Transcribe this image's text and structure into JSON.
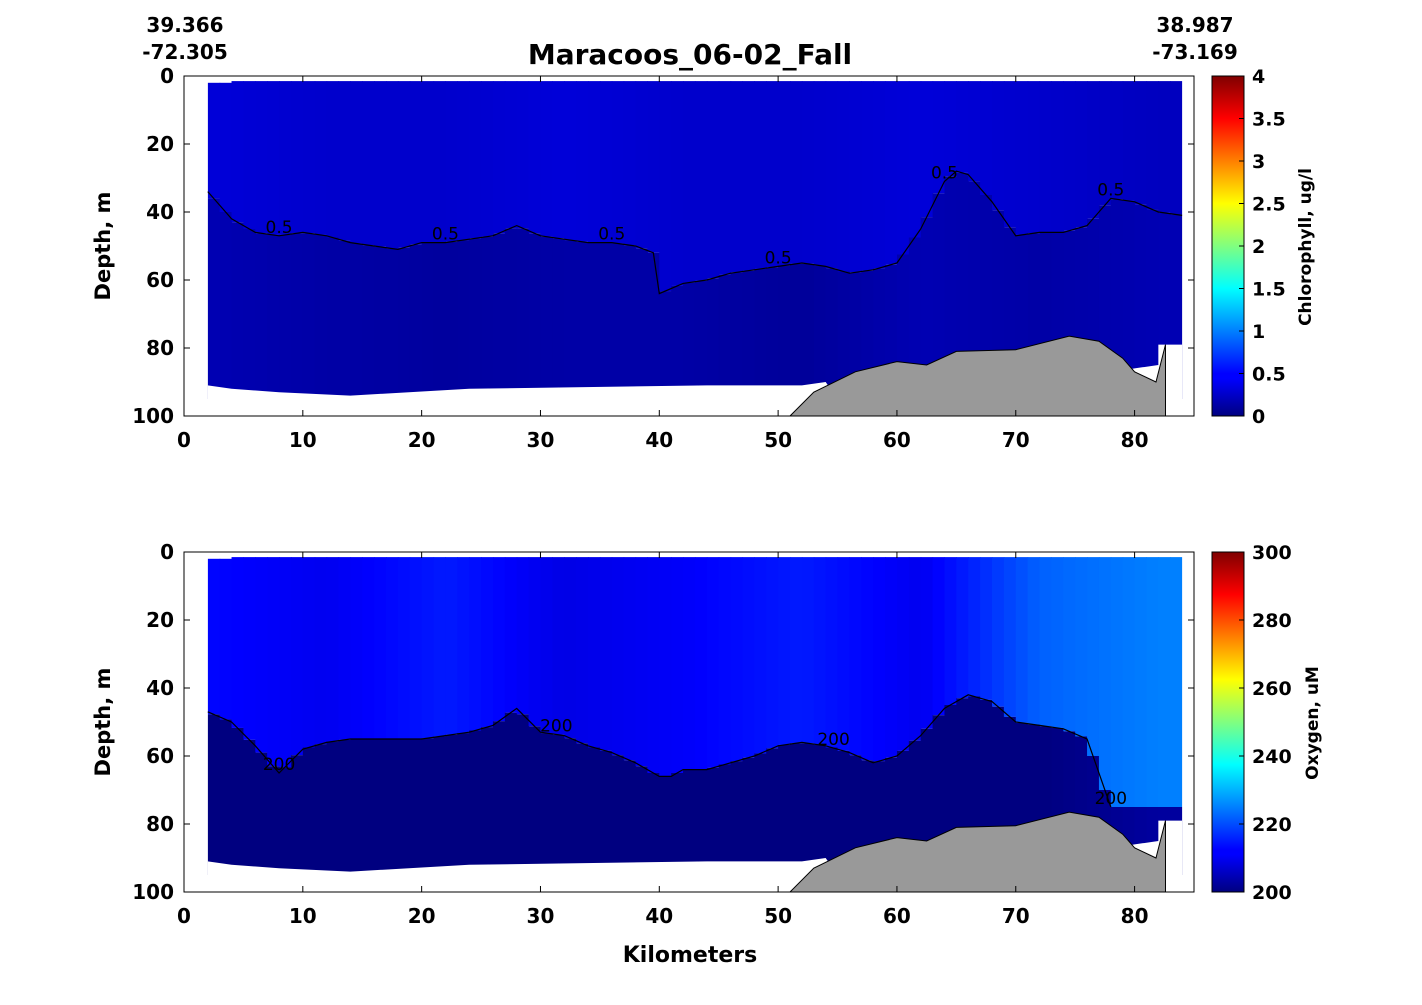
{
  "figure": {
    "title": "Maracoos_06-02_Fall",
    "start_lat": "39.366",
    "start_lon": "-72.305",
    "end_lat": "38.987",
    "end_lon": "-73.169",
    "xlabel": "Kilometers"
  },
  "chart_data": [
    {
      "type": "heatmap",
      "variable": "Chlorophyll",
      "ylabel": "Depth, m",
      "colorbar_label": "Chlorophyll, ug/l",
      "colorbar_ticks": [
        "0",
        "0.5",
        "1",
        "1.5",
        "2",
        "2.5",
        "3",
        "3.5",
        "4"
      ],
      "colorbar_range": [
        0,
        4
      ],
      "colormap": "jet",
      "xlim": [
        0,
        85
      ],
      "ylim": [
        100,
        0
      ],
      "x_ticks": [
        "0",
        "10",
        "20",
        "30",
        "40",
        "50",
        "60",
        "70",
        "80"
      ],
      "y_ticks": [
        "0",
        "20",
        "40",
        "60",
        "80",
        "100"
      ],
      "contour_level": 0.5,
      "contour_labels": [
        "0.5",
        "0.5",
        "0.5",
        "0.5",
        "0.5",
        "0.5"
      ],
      "contour_depth_profile": {
        "x": [
          2,
          4,
          6,
          8,
          10,
          12,
          14,
          16,
          18,
          20,
          22,
          24,
          26,
          28,
          30,
          32,
          34,
          36,
          38,
          39.5,
          40,
          42,
          44,
          46,
          48,
          50,
          52,
          54,
          56,
          58,
          60,
          62,
          64,
          65,
          66,
          68,
          70,
          72,
          74,
          76,
          78,
          80,
          82,
          84
        ],
        "y": [
          34,
          42,
          46,
          47,
          46,
          47,
          49,
          50,
          51,
          49,
          49,
          48,
          47,
          44,
          47,
          48,
          49,
          49,
          50,
          52,
          64,
          61,
          60,
          58,
          57,
          56,
          55,
          56,
          58,
          57,
          55,
          45,
          31,
          28,
          29,
          37,
          47,
          46,
          46,
          44,
          36,
          37,
          40,
          41
        ]
      },
      "surface_values_approx": [
        0.35,
        0.3,
        0.3,
        0.35,
        0.3,
        0.3,
        0.35,
        0.3,
        0.25
      ],
      "deep_values_approx": [
        0.2,
        0.15,
        0.12,
        0.15,
        0.15,
        0.1,
        0.2,
        0.15,
        0.2
      ]
    },
    {
      "type": "heatmap",
      "variable": "Oxygen",
      "ylabel": "Depth, m",
      "xlabel": "Kilometers",
      "colorbar_label": "Oxygen, uM",
      "colorbar_ticks": [
        "200",
        "220",
        "240",
        "260",
        "280",
        "300"
      ],
      "colorbar_range": [
        200,
        300
      ],
      "colormap": "jet",
      "xlim": [
        0,
        85
      ],
      "ylim": [
        100,
        0
      ],
      "x_ticks": [
        "0",
        "10",
        "20",
        "30",
        "40",
        "50",
        "60",
        "70",
        "80"
      ],
      "y_ticks": [
        "0",
        "20",
        "40",
        "60",
        "80",
        "100"
      ],
      "contour_level": 200,
      "contour_labels": [
        "200",
        "200",
        "200",
        "200"
      ],
      "contour_depth_profile": {
        "x": [
          2,
          4,
          6,
          8,
          10,
          12,
          14,
          16,
          18,
          20,
          22,
          24,
          26,
          28,
          30,
          32,
          34,
          36,
          38,
          40,
          41,
          42,
          44,
          46,
          48,
          50,
          52,
          54,
          56,
          58,
          60,
          62,
          64,
          66,
          68,
          70,
          72,
          74,
          76,
          78
        ],
        "y": [
          47,
          50,
          57,
          65,
          58,
          56,
          55,
          55,
          55,
          55,
          54,
          53,
          51,
          46,
          53,
          54,
          57,
          59,
          62,
          66,
          66,
          64,
          64,
          62,
          60,
          57,
          56,
          57,
          59,
          62,
          60,
          54,
          46,
          42,
          44,
          50,
          51,
          52,
          55,
          75
        ]
      },
      "surface_values_approx": [
        213,
        211,
        215,
        210,
        212,
        215,
        211,
        222,
        225
      ],
      "deep_values_approx": [
        200,
        200,
        200,
        200,
        200,
        200,
        200,
        200,
        203
      ]
    }
  ],
  "bathymetry": {
    "x": [
      51,
      53,
      56.5,
      60,
      62.5,
      65,
      70,
      74.5,
      77,
      79,
      80,
      81.8,
      82.6,
      82.6
    ],
    "depth": [
      100,
      93,
      87,
      84,
      85,
      81,
      80.5,
      76.5,
      78,
      83,
      87,
      90,
      79,
      100
    ],
    "color": "#999999"
  }
}
